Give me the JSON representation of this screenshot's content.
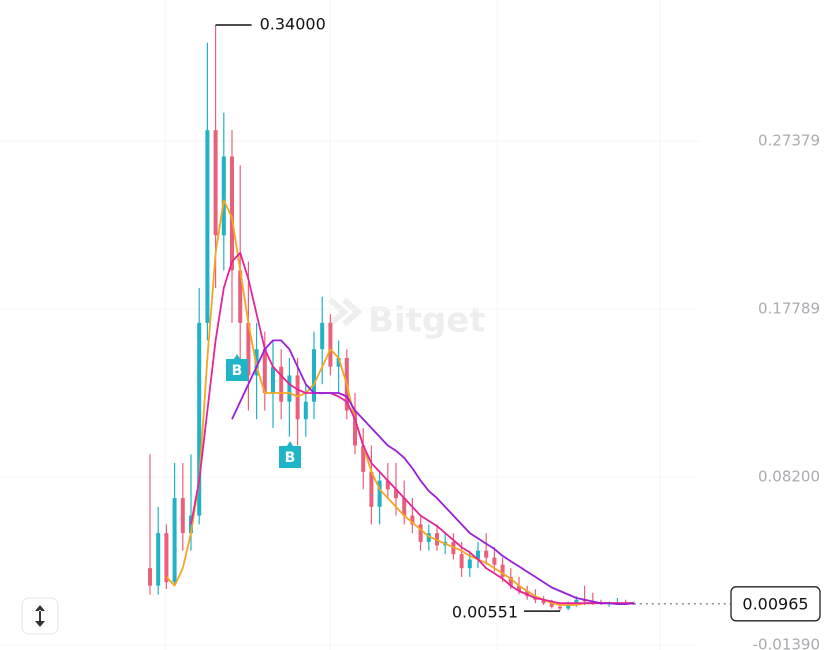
{
  "chart_data": {
    "type": "candlestick",
    "watermark": "Bitget",
    "up_color": "#21b2c7",
    "down_color": "#e8607a",
    "open": [
      0.03,
      0.02,
      0.05,
      0.022,
      0.07,
      0.05,
      0.06,
      0.17,
      0.28,
      0.22,
      0.265,
      0.2,
      0.17,
      0.14,
      0.155,
      0.13,
      0.145,
      0.125,
      0.14,
      0.115,
      0.125,
      0.155,
      0.17,
      0.145,
      0.15,
      0.12,
      0.1,
      0.085,
      0.065,
      0.08,
      0.075,
      0.07,
      0.06,
      0.055,
      0.045,
      0.05,
      0.043,
      0.045,
      0.038,
      0.03,
      0.035,
      0.04,
      0.036,
      0.032,
      0.025,
      0.02,
      0.017,
      0.014,
      0.012,
      0.01,
      0.008,
      0.007,
      0.01,
      0.012,
      0.011,
      0.01,
      0.0095,
      0.01,
      0.0105,
      0.0098
    ],
    "high": [
      0.095,
      0.065,
      0.055,
      0.09,
      0.09,
      0.095,
      0.19,
      0.33,
      0.34,
      0.29,
      0.28,
      0.26,
      0.205,
      0.17,
      0.165,
      0.16,
      0.155,
      0.15,
      0.15,
      0.135,
      0.165,
      0.185,
      0.175,
      0.16,
      0.155,
      0.13,
      0.11,
      0.1,
      0.085,
      0.09,
      0.09,
      0.08,
      0.07,
      0.06,
      0.055,
      0.055,
      0.05,
      0.05,
      0.045,
      0.04,
      0.045,
      0.05,
      0.042,
      0.036,
      0.03,
      0.025,
      0.02,
      0.018,
      0.014,
      0.012,
      0.01,
      0.011,
      0.014,
      0.02,
      0.016,
      0.012,
      0.011,
      0.013,
      0.012,
      0.011
    ],
    "low": [
      0.015,
      0.015,
      0.018,
      0.02,
      0.04,
      0.04,
      0.055,
      0.16,
      0.19,
      0.2,
      0.17,
      0.14,
      0.12,
      0.115,
      0.12,
      0.11,
      0.115,
      0.105,
      0.1,
      0.105,
      0.115,
      0.135,
      0.14,
      0.13,
      0.115,
      0.095,
      0.075,
      0.055,
      0.055,
      0.07,
      0.06,
      0.055,
      0.05,
      0.04,
      0.04,
      0.04,
      0.038,
      0.035,
      0.025,
      0.025,
      0.03,
      0.032,
      0.028,
      0.022,
      0.018,
      0.015,
      0.012,
      0.01,
      0.009,
      0.007,
      0.00551,
      0.006,
      0.008,
      0.009,
      0.009,
      0.009,
      0.008,
      0.009,
      0.009,
      0.009
    ],
    "close": [
      0.02,
      0.05,
      0.022,
      0.07,
      0.05,
      0.06,
      0.17,
      0.28,
      0.22,
      0.265,
      0.2,
      0.17,
      0.14,
      0.155,
      0.13,
      0.145,
      0.125,
      0.14,
      0.115,
      0.125,
      0.155,
      0.17,
      0.145,
      0.15,
      0.12,
      0.1,
      0.085,
      0.065,
      0.08,
      0.075,
      0.07,
      0.06,
      0.055,
      0.045,
      0.05,
      0.043,
      0.045,
      0.038,
      0.03,
      0.035,
      0.04,
      0.036,
      0.032,
      0.025,
      0.02,
      0.017,
      0.014,
      0.012,
      0.01,
      0.008,
      0.007,
      0.01,
      0.012,
      0.011,
      0.01,
      0.0095,
      0.01,
      0.0105,
      0.0098,
      0.00965
    ],
    "lines": [
      {
        "color": "#f5a623",
        "values": [
          null,
          null,
          0.025,
          0.02,
          0.03,
          0.05,
          0.08,
          0.15,
          0.21,
          0.24,
          0.23,
          0.2,
          0.17,
          0.145,
          0.13,
          0.13,
          0.13,
          0.13,
          0.128,
          0.13,
          0.135,
          0.145,
          0.155,
          0.15,
          0.135,
          0.115,
          0.1,
          0.085,
          0.075,
          0.07,
          0.065,
          0.06,
          0.056,
          0.052,
          0.048,
          0.046,
          0.044,
          0.042,
          0.04,
          0.037,
          0.035,
          0.033,
          0.03,
          0.027,
          0.024,
          0.02,
          0.017,
          0.014,
          0.012,
          0.01,
          0.009,
          0.009,
          0.009,
          0.01,
          0.01,
          0.01,
          0.01,
          0.01,
          0.01,
          0.01
        ]
      },
      {
        "color": "#e6239a",
        "values": [
          null,
          null,
          null,
          null,
          null,
          0.055,
          0.08,
          0.12,
          0.16,
          0.19,
          0.205,
          0.21,
          0.195,
          0.175,
          0.155,
          0.145,
          0.14,
          0.135,
          0.132,
          0.13,
          0.13,
          0.13,
          0.13,
          0.128,
          0.125,
          0.115,
          0.1,
          0.09,
          0.085,
          0.08,
          0.075,
          0.07,
          0.065,
          0.06,
          0.057,
          0.054,
          0.05,
          0.046,
          0.042,
          0.039,
          0.035,
          0.03,
          0.027,
          0.024,
          0.02,
          0.017,
          0.015,
          0.013,
          0.012,
          0.011,
          0.01,
          0.01,
          0.01,
          0.01,
          0.01,
          0.01,
          0.01,
          0.01,
          0.01,
          0.01
        ]
      },
      {
        "color": "#9b1fd6",
        "values": [
          null,
          null,
          null,
          null,
          null,
          null,
          null,
          null,
          null,
          null,
          0.115,
          0.125,
          0.135,
          0.145,
          0.155,
          0.16,
          0.16,
          0.155,
          0.145,
          0.135,
          0.13,
          0.13,
          0.13,
          0.13,
          0.128,
          0.12,
          0.115,
          0.11,
          0.105,
          0.1,
          0.097,
          0.093,
          0.087,
          0.08,
          0.074,
          0.07,
          0.065,
          0.06,
          0.055,
          0.05,
          0.047,
          0.044,
          0.041,
          0.037,
          0.034,
          0.031,
          0.028,
          0.025,
          0.022,
          0.019,
          0.017,
          0.015,
          0.013,
          0.012,
          0.011,
          0.01,
          0.01,
          0.0095,
          0.0095,
          0.01
        ]
      }
    ],
    "high_label": "0.34000",
    "last_price": 0.00965,
    "signals": [
      "B",
      "B"
    ],
    "ylim": [
      -0.0167,
      0.3543
    ],
    "yticks": [
      0.27379,
      0.17789,
      {
        "value": 0.082,
        "label": "0.08200"
      },
      {
        "value": -0.0139,
        "label": "-0.01390"
      }
    ],
    "grid": true
  }
}
